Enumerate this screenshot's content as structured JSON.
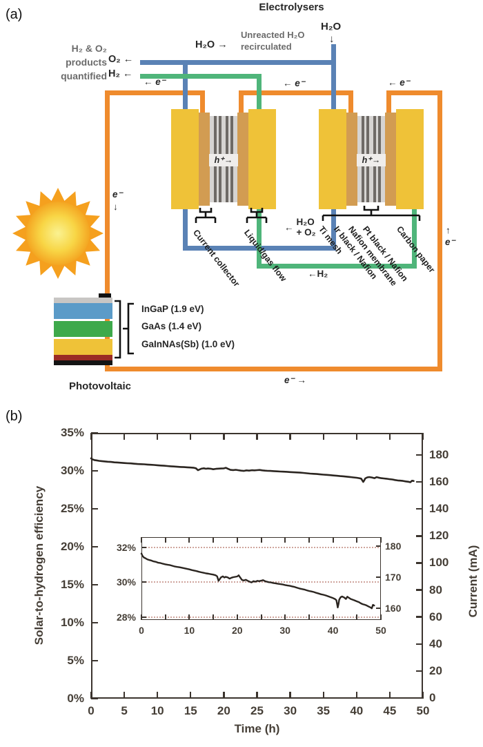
{
  "panel_a": {
    "panel_label": "(a)",
    "title": "Electrolysers",
    "top": {
      "products_line1": "H₂ & O₂",
      "products_line2": "products",
      "products_line3": "quantified",
      "o2_out": "O₂ ←",
      "h2_out": "H₂ ←",
      "h2o_left": "H₂O →",
      "unreacted_line1": "Unreacted H₂O",
      "unreacted_line2": "recirculated",
      "h2o_input": "H₂O",
      "h2o_input_arrow": "↓"
    },
    "electrons": {
      "e_top_left": "← e⁻",
      "e_top_mid": "← e⁻",
      "e_top_right": "← e⁻",
      "e_left_side": "e⁻",
      "e_left_side_arrow": "↓",
      "e_right_side_arrow": "↑",
      "e_right_side": "e⁻",
      "e_bottom": "e⁻ →"
    },
    "cells": {
      "h_plus_1": "h⁺→",
      "h_plus_2": "h⁺→"
    },
    "mid_labels": {
      "h2o_o2_arrow": "←",
      "h2o_o2_line1": "H₂O",
      "h2o_o2_line2": "+ O₂",
      "h2_return": "←H₂"
    },
    "cell1_labels": [
      "Current collector",
      "Liquid/gas flow"
    ],
    "cell2_labels": [
      "Ti mesh",
      "Ir black / Nafion",
      "Nafion membrane",
      "Pt black / Nafion",
      "Carbon paper"
    ],
    "pv": {
      "layer_labels": [
        "InGaP (1.9 eV)",
        "GaAs (1.4 eV)",
        "GaInNAs(Sb) (1.0 eV)"
      ],
      "caption": "Photovoltaic"
    },
    "colors": {
      "wire_orange": "#EF8B2D",
      "wire_blue": "#5A82B5",
      "wire_green": "#4FB57A",
      "electrode_yellow": "#EFC238",
      "terminal_tan": "#D29C52",
      "membrane_gray": "#D6D4D2",
      "membrane_dark": "#6E6A66",
      "pv_blue": "#5B9BC8",
      "pv_green": "#3EA94B",
      "pv_yellow": "#EFC238",
      "pv_red": "#9B2C24"
    }
  },
  "panel_b": {
    "panel_label": "(b)"
  },
  "chart_data": {
    "type": "line",
    "title": "",
    "xlabel": "Time (h)",
    "ylabel_left": "Solar-to-hydrogen efficiency",
    "ylabel_right": "Current (mA)",
    "xlim": [
      0,
      50
    ],
    "ylim_left_percent": [
      0,
      35
    ],
    "ylim_right_mA": [
      0,
      184
    ],
    "x_ticks": [
      0,
      5,
      10,
      15,
      20,
      25,
      30,
      35,
      40,
      45,
      50
    ],
    "y_ticks_left_percent": [
      0,
      5,
      10,
      15,
      20,
      25,
      30,
      35
    ],
    "y_ticks_right_mA": [
      0,
      20,
      40,
      60,
      80,
      100,
      120,
      140,
      160,
      180
    ],
    "grid": false,
    "current_per_percent": 5.612,
    "series": [
      {
        "name": "Solar-to-hydrogen efficiency / cell current",
        "points": [
          [
            0,
            31.65
          ],
          [
            0.2,
            31.52
          ],
          [
            0.5,
            31.42
          ],
          [
            0.8,
            31.38
          ],
          [
            1.2,
            31.32
          ],
          [
            1.6,
            31.28
          ],
          [
            2,
            31.25
          ],
          [
            2.5,
            31.2
          ],
          [
            3,
            31.17
          ],
          [
            3.5,
            31.12
          ],
          [
            4,
            31.1
          ],
          [
            4.5,
            31.06
          ],
          [
            5,
            31.03
          ],
          [
            5.5,
            31.0
          ],
          [
            6,
            30.98
          ],
          [
            6.5,
            30.94
          ],
          [
            7,
            30.9
          ],
          [
            7.5,
            30.88
          ],
          [
            8,
            30.86
          ],
          [
            8.5,
            30.83
          ],
          [
            9,
            30.8
          ],
          [
            9.5,
            30.77
          ],
          [
            10,
            30.74
          ],
          [
            10.5,
            30.7
          ],
          [
            11,
            30.67
          ],
          [
            11.5,
            30.64
          ],
          [
            12,
            30.6
          ],
          [
            12.5,
            30.57
          ],
          [
            13,
            30.54
          ],
          [
            13.5,
            30.51
          ],
          [
            14,
            30.49
          ],
          [
            14.5,
            30.46
          ],
          [
            15,
            30.44
          ],
          [
            15.5,
            30.4
          ],
          [
            15.8,
            30.34
          ],
          [
            16.1,
            30.08
          ],
          [
            16.35,
            30.18
          ],
          [
            16.6,
            30.28
          ],
          [
            17,
            30.34
          ],
          [
            17.3,
            30.27
          ],
          [
            17.6,
            30.31
          ],
          [
            18,
            30.28
          ],
          [
            18.4,
            30.21
          ],
          [
            18.8,
            30.26
          ],
          [
            19.2,
            30.29
          ],
          [
            19.6,
            30.31
          ],
          [
            20,
            30.33
          ],
          [
            20.3,
            30.4
          ],
          [
            20.6,
            30.28
          ],
          [
            21,
            30.13
          ],
          [
            21.4,
            30.1
          ],
          [
            21.8,
            30.14
          ],
          [
            22.2,
            30.08
          ],
          [
            22.6,
            30.03
          ],
          [
            23,
            29.99
          ],
          [
            23.4,
            30.06
          ],
          [
            23.8,
            30.03
          ],
          [
            24.2,
            30.08
          ],
          [
            24.6,
            30.06
          ],
          [
            25,
            30.09
          ],
          [
            25.4,
            30.12
          ],
          [
            25.8,
            30.06
          ],
          [
            26.2,
            30.03
          ],
          [
            26.6,
            30.0
          ],
          [
            27,
            29.99
          ],
          [
            27.5,
            29.96
          ],
          [
            28,
            29.94
          ],
          [
            28.5,
            29.91
          ],
          [
            29,
            29.89
          ],
          [
            29.5,
            29.87
          ],
          [
            30,
            29.84
          ],
          [
            30.5,
            29.81
          ],
          [
            31,
            29.79
          ],
          [
            31.5,
            29.76
          ],
          [
            32,
            29.73
          ],
          [
            32.5,
            29.68
          ],
          [
            33,
            29.64
          ],
          [
            33.5,
            29.61
          ],
          [
            34,
            29.58
          ],
          [
            34.5,
            29.54
          ],
          [
            35,
            29.5
          ],
          [
            35.5,
            29.47
          ],
          [
            36,
            29.44
          ],
          [
            36.5,
            29.39
          ],
          [
            37,
            29.35
          ],
          [
            37.5,
            29.31
          ],
          [
            38,
            29.28
          ],
          [
            38.5,
            29.24
          ],
          [
            39,
            29.19
          ],
          [
            39.5,
            29.14
          ],
          [
            40,
            29.09
          ],
          [
            40.4,
            29.04
          ],
          [
            40.7,
            28.97
          ],
          [
            41,
            28.55
          ],
          [
            41.15,
            28.75
          ],
          [
            41.3,
            29.0
          ],
          [
            41.6,
            29.14
          ],
          [
            41.9,
            29.18
          ],
          [
            42.3,
            29.13
          ],
          [
            42.7,
            29.04
          ],
          [
            43,
            29.17
          ],
          [
            43.3,
            29.11
          ],
          [
            43.7,
            29.04
          ],
          [
            44.1,
            29.0
          ],
          [
            44.5,
            28.96
          ],
          [
            45,
            28.9
          ],
          [
            45.4,
            28.86
          ],
          [
            45.8,
            28.79
          ],
          [
            46.2,
            28.74
          ],
          [
            46.6,
            28.71
          ],
          [
            47,
            28.67
          ],
          [
            47.4,
            28.61
          ],
          [
            47.8,
            28.56
          ],
          [
            48.1,
            28.5
          ],
          [
            48.35,
            28.7
          ],
          [
            48.6,
            28.66
          ]
        ]
      }
    ],
    "inset": {
      "xlim": [
        0,
        50
      ],
      "x_tick_labels": [
        0,
        10,
        20,
        30,
        40,
        50
      ],
      "x_minor_ticks": [
        0,
        5,
        10,
        15,
        20,
        25,
        30,
        35,
        40,
        45,
        50
      ],
      "ylim_mA": [
        156.2,
        182.9
      ],
      "gridline_percents": [
        32,
        30,
        28
      ],
      "y_ticks_right_mA": [
        180,
        170,
        160
      ]
    }
  }
}
